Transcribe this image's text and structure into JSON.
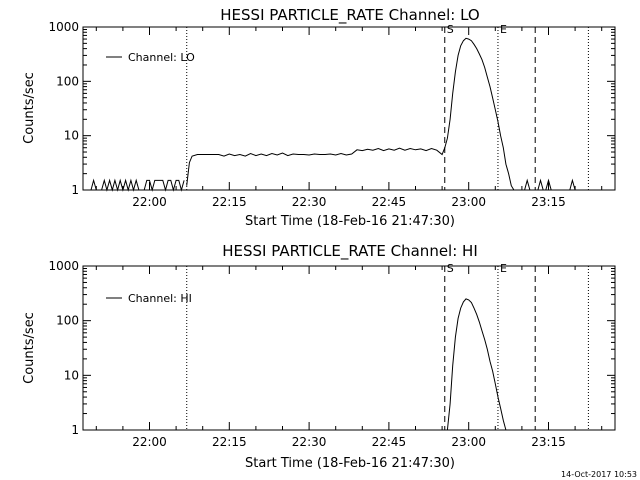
{
  "chart_data": [
    {
      "type": "line",
      "title": "HESSI PARTICLE_RATE Channel: LO",
      "xlabel": "Start Time (18-Feb-16 21:47:30)",
      "ylabel": "Counts/sec",
      "y_scale": "log",
      "xlim": [
        "21:47:30",
        "23:27:30"
      ],
      "ylim": [
        1,
        1000
      ],
      "xticks": [
        "22:00",
        "22:15",
        "22:30",
        "22:45",
        "23:00",
        "23:15"
      ],
      "yticks": [
        "1",
        "10",
        "100",
        "1000"
      ],
      "grid": false,
      "legend": {
        "position": "top-left",
        "entries": [
          "Channel: LO"
        ]
      },
      "markers": [
        {
          "time": "22:07:00",
          "style": "dotted"
        },
        {
          "time": "22:55:30",
          "style": "dashed",
          "label": "S"
        },
        {
          "time": "23:05:30",
          "style": "dotted",
          "label": "E"
        },
        {
          "time": "23:12:30",
          "style": "dashed"
        },
        {
          "time": "23:22:30",
          "style": "dotted"
        }
      ],
      "series": [
        {
          "name": "Channel: LO",
          "segments": [
            [
              [
                "21:49:00",
                1
              ],
              [
                "21:49:30",
                1.5
              ],
              [
                "21:50:00",
                1
              ],
              [
                "21:51:00",
                1
              ],
              [
                "21:51:30",
                1.5
              ],
              [
                "21:52:00",
                1
              ],
              [
                "21:52:30",
                1.5
              ],
              [
                "21:53:00",
                1
              ],
              [
                "21:53:30",
                1.5
              ],
              [
                "21:54:00",
                1
              ],
              [
                "21:54:30",
                1.5
              ],
              [
                "21:55:00",
                1
              ],
              [
                "21:55:30",
                1.5
              ],
              [
                "21:56:00",
                1
              ],
              [
                "21:56:30",
                1.5
              ],
              [
                "21:57:00",
                1
              ],
              [
                "21:57:30",
                1.5
              ],
              [
                "21:58:00",
                1
              ],
              [
                "21:59:00",
                1
              ],
              [
                "21:59:30",
                1.5
              ],
              [
                "22:00:00",
                1.5
              ],
              [
                "22:00:30",
                1
              ],
              [
                "22:01:00",
                1.5
              ],
              [
                "22:01:30",
                1.5
              ],
              [
                "22:02:00",
                1.5
              ],
              [
                "22:02:30",
                1.5
              ],
              [
                "22:03:00",
                1
              ],
              [
                "22:03:30",
                1.5
              ],
              [
                "22:04:00",
                1.5
              ],
              [
                "22:04:30",
                1
              ],
              [
                "22:05:00",
                1.5
              ],
              [
                "22:05:30",
                1.5
              ],
              [
                "22:06:00",
                1
              ],
              [
                "22:06:30",
                1.5
              ]
            ],
            [
              [
                "22:07:00",
                1.2
              ],
              [
                "22:07:30",
                3.2
              ],
              [
                "22:08:00",
                4.2
              ],
              [
                "22:09:00",
                4.5
              ],
              [
                "22:10:00",
                4.5
              ],
              [
                "22:11:00",
                4.5
              ],
              [
                "22:12:00",
                4.5
              ],
              [
                "22:13:00",
                4.5
              ],
              [
                "22:14:00",
                4.2
              ],
              [
                "22:15:00",
                4.6
              ],
              [
                "22:16:00",
                4.3
              ],
              [
                "22:17:00",
                4.5
              ],
              [
                "22:18:00",
                4.2
              ],
              [
                "22:19:00",
                4.7
              ],
              [
                "22:20:00",
                4.3
              ],
              [
                "22:21:00",
                4.6
              ],
              [
                "22:22:00",
                4.3
              ],
              [
                "22:23:00",
                4.7
              ],
              [
                "22:24:00",
                4.4
              ],
              [
                "22:25:00",
                4.8
              ],
              [
                "22:26:00",
                4.3
              ],
              [
                "22:27:00",
                4.6
              ],
              [
                "22:28:00",
                4.5
              ],
              [
                "22:29:00",
                4.5
              ],
              [
                "22:30:00",
                4.4
              ],
              [
                "22:31:00",
                4.6
              ],
              [
                "22:32:00",
                4.5
              ],
              [
                "22:33:00",
                4.5
              ],
              [
                "22:34:00",
                4.6
              ],
              [
                "22:35:00",
                4.4
              ],
              [
                "22:36:00",
                4.7
              ],
              [
                "22:37:00",
                4.4
              ],
              [
                "22:38:00",
                4.6
              ],
              [
                "22:39:00",
                5.5
              ],
              [
                "22:40:00",
                5.3
              ],
              [
                "22:41:00",
                5.6
              ],
              [
                "22:42:00",
                5.4
              ],
              [
                "22:43:00",
                5.8
              ],
              [
                "22:44:00",
                5.3
              ],
              [
                "22:45:00",
                5.7
              ],
              [
                "22:46:00",
                5.4
              ],
              [
                "22:47:00",
                5.9
              ],
              [
                "22:48:00",
                5.4
              ],
              [
                "22:49:00",
                5.8
              ],
              [
                "22:50:00",
                5.5
              ],
              [
                "22:51:00",
                5.7
              ],
              [
                "22:52:00",
                5.3
              ],
              [
                "22:53:00",
                5.8
              ],
              [
                "22:54:00",
                5.4
              ],
              [
                "22:55:00",
                4.5
              ],
              [
                "22:55:30",
                6.0
              ],
              [
                "22:56:00",
                9
              ],
              [
                "22:56:30",
                20
              ],
              [
                "22:57:00",
                60
              ],
              [
                "22:57:30",
                150
              ],
              [
                "22:58:00",
                300
              ],
              [
                "22:58:30",
                450
              ],
              [
                "22:59:00",
                560
              ],
              [
                "22:59:30",
                620
              ],
              [
                "23:00:00",
                600
              ],
              [
                "23:00:30",
                560
              ],
              [
                "23:01:00",
                480
              ],
              [
                "23:01:30",
                400
              ],
              [
                "23:02:00",
                320
              ],
              [
                "23:02:30",
                250
              ],
              [
                "23:03:00",
                180
              ],
              [
                "23:03:30",
                120
              ],
              [
                "23:04:00",
                80
              ],
              [
                "23:04:30",
                50
              ],
              [
                "23:05:00",
                30
              ],
              [
                "23:05:30",
                18
              ],
              [
                "23:06:00",
                10
              ],
              [
                "23:06:30",
                6
              ],
              [
                "23:07:00",
                3
              ],
              [
                "23:07:30",
                2
              ],
              [
                "23:08:00",
                1.2
              ],
              [
                "23:08:30",
                1
              ],
              [
                "23:09:00",
                1
              ],
              [
                "23:10:00",
                1
              ]
            ],
            [
              [
                "23:10:30",
                1
              ],
              [
                "23:11:00",
                1.5
              ],
              [
                "23:11:30",
                1
              ]
            ],
            [
              [
                "23:13:00",
                1
              ],
              [
                "23:13:30",
                1.5
              ],
              [
                "23:14:00",
                1
              ]
            ],
            [
              [
                "23:14:30",
                1
              ],
              [
                "23:15:00",
                1.5
              ],
              [
                "23:15:30",
                1
              ]
            ],
            [
              [
                "23:19:00",
                1
              ],
              [
                "23:19:30",
                1.5
              ],
              [
                "23:20:00",
                1
              ]
            ]
          ]
        }
      ]
    },
    {
      "type": "line",
      "title": "HESSI PARTICLE_RATE Channel: HI",
      "xlabel": "Start Time (18-Feb-16 21:47:30)",
      "ylabel": "Counts/sec",
      "y_scale": "log",
      "xlim": [
        "21:47:30",
        "23:27:30"
      ],
      "ylim": [
        1,
        1000
      ],
      "xticks": [
        "22:00",
        "22:15",
        "22:30",
        "22:45",
        "23:00",
        "23:15"
      ],
      "yticks": [
        "1",
        "10",
        "100",
        "1000"
      ],
      "grid": false,
      "legend": {
        "position": "top-left",
        "entries": [
          "Channel: HI"
        ]
      },
      "markers": [
        {
          "time": "22:07:00",
          "style": "dotted"
        },
        {
          "time": "22:55:30",
          "style": "dashed",
          "label": "S"
        },
        {
          "time": "23:05:30",
          "style": "dotted",
          "label": "E"
        },
        {
          "time": "23:12:30",
          "style": "dashed"
        },
        {
          "time": "23:22:30",
          "style": "dotted"
        }
      ],
      "series": [
        {
          "name": "Channel: HI",
          "segments": [
            [
              [
                "22:56:00",
                1
              ],
              [
                "22:56:30",
                3
              ],
              [
                "22:57:00",
                15
              ],
              [
                "22:57:30",
                50
              ],
              [
                "22:58:00",
                110
              ],
              [
                "22:58:30",
                170
              ],
              [
                "22:59:00",
                220
              ],
              [
                "22:59:30",
                250
              ],
              [
                "23:00:00",
                240
              ],
              [
                "23:00:30",
                215
              ],
              [
                "23:01:00",
                170
              ],
              [
                "23:01:30",
                130
              ],
              [
                "23:02:00",
                95
              ],
              [
                "23:02:30",
                65
              ],
              [
                "23:03:00",
                45
              ],
              [
                "23:03:30",
                30
              ],
              [
                "23:04:00",
                18
              ],
              [
                "23:04:30",
                12
              ],
              [
                "23:05:00",
                7
              ],
              [
                "23:05:30",
                4
              ],
              [
                "23:06:00",
                2.5
              ],
              [
                "23:06:30",
                1.5
              ],
              [
                "23:07:00",
                1
              ]
            ]
          ]
        }
      ]
    }
  ],
  "footer": {
    "timestamp": "14-Oct-2017 10:53"
  }
}
